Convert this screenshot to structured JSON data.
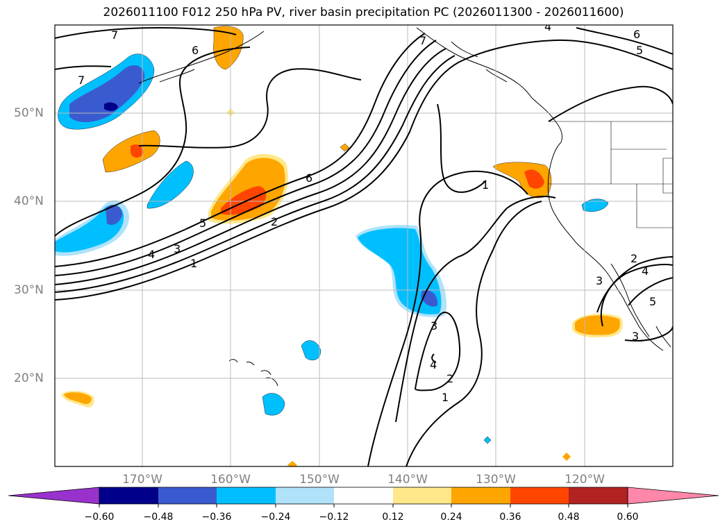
{
  "title": "2026011100 F012 250 hPa PV, river basin precipitation PC (2026011300 - 2026011600)",
  "lon_labels": [
    "170°W",
    "160°W",
    "150°W",
    "140°W",
    "130°W",
    "120°W"
  ],
  "lat_labels": [
    "50°N",
    "40°N",
    "30°N",
    "20°N"
  ],
  "contour_labels": [
    "7",
    "6",
    "7",
    "6",
    "5",
    "6",
    "5",
    "4",
    "3",
    "1",
    "2",
    "1",
    "2",
    "3",
    "4",
    "1",
    "2",
    "3",
    "4",
    "5",
    "3",
    "4",
    "7"
  ],
  "colorbar": {
    "ticks": [
      "−0.60",
      "−0.48",
      "−0.36",
      "−0.24",
      "−0.12",
      "0.12",
      "0.24",
      "0.36",
      "0.48",
      "0.60"
    ],
    "colors": [
      "#9932cc",
      "#00008b",
      "#3a5bcf",
      "#00bfff",
      "#b0e2fa",
      "#ffffff",
      "#ffe88a",
      "#ffa500",
      "#ff4500",
      "#b22222",
      "#ff88aa"
    ]
  },
  "colors": {
    "axis_label": "#808080",
    "gridline": "#bbbbbb",
    "contour": "#000000"
  }
}
